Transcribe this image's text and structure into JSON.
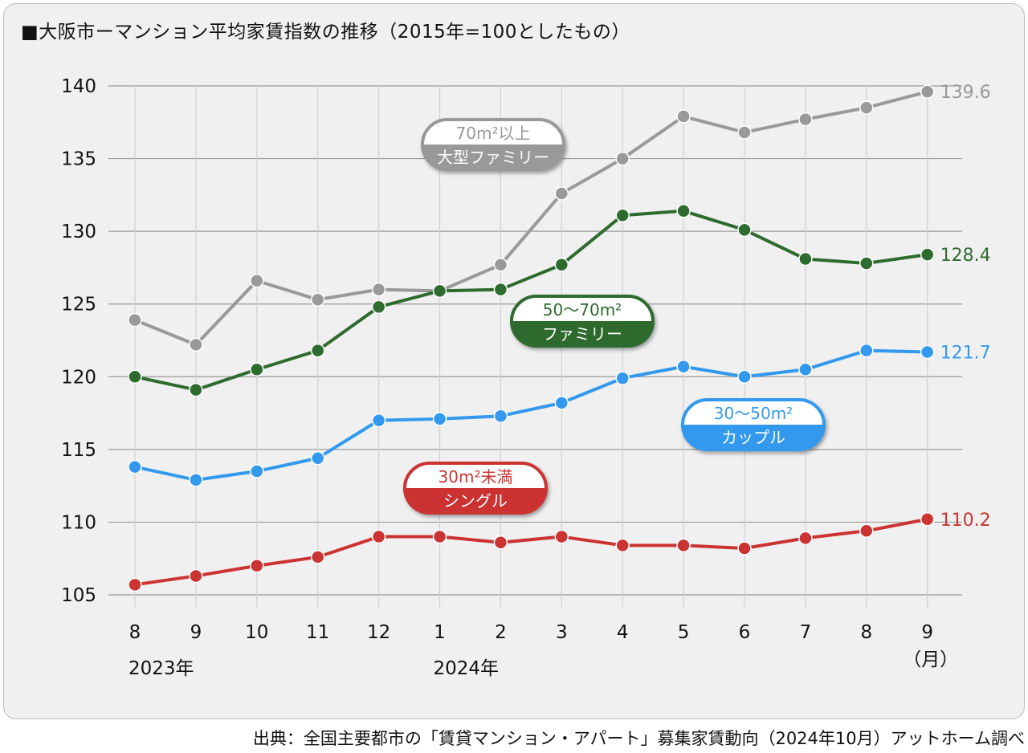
{
  "title": "■大阪市ーマンション平均家賃指数の推移（2015年=100としたもの）",
  "source": "出典：全国主要都市の「賃貸マンション・アパート」募集家賃動向（2024年10月）アットホーム調べ",
  "chart_data": {
    "type": "line",
    "categories": [
      "8",
      "9",
      "10",
      "11",
      "12",
      "1",
      "2",
      "3",
      "4",
      "5",
      "6",
      "7",
      "8",
      "9"
    ],
    "year_labels": [
      {
        "index": 0,
        "text": "2023年"
      },
      {
        "index": 5,
        "text": "2024年"
      }
    ],
    "x_unit": "（月）",
    "yticks": [
      "140",
      "135",
      "130",
      "125",
      "120",
      "115",
      "110",
      "105"
    ],
    "ylim": [
      105,
      140
    ],
    "grid": true,
    "series": [
      {
        "name_top": "70m²以上",
        "name_bottom": "大型ファミリー",
        "color": "#999999",
        "values": [
          123.9,
          122.2,
          126.6,
          125.3,
          126.0,
          125.9,
          127.7,
          132.6,
          135.0,
          137.9,
          136.8,
          137.7,
          138.5,
          139.6
        ],
        "end_label": "139.6"
      },
      {
        "name_top": "50〜70m²",
        "name_bottom": "ファミリー",
        "color": "#2e6b2e",
        "values": [
          120.0,
          119.1,
          120.5,
          121.8,
          124.8,
          125.9,
          126.0,
          127.7,
          131.1,
          131.4,
          130.1,
          128.1,
          127.8,
          128.4
        ],
        "end_label": "128.4"
      },
      {
        "name_top": "30〜50m²",
        "name_bottom": "カップル",
        "color": "#3399ee",
        "values": [
          113.8,
          112.9,
          113.5,
          114.4,
          117.0,
          117.1,
          117.3,
          118.2,
          119.9,
          120.7,
          120.0,
          120.5,
          121.8,
          121.7
        ],
        "end_label": "121.7"
      },
      {
        "name_top": "30m²未満",
        "name_bottom": "シングル",
        "color": "#cc3333",
        "values": [
          105.7,
          106.3,
          107.0,
          107.6,
          109.0,
          109.0,
          108.6,
          109.0,
          108.4,
          108.4,
          108.2,
          108.9,
          109.4,
          110.2
        ],
        "end_label": "110.2"
      }
    ]
  }
}
